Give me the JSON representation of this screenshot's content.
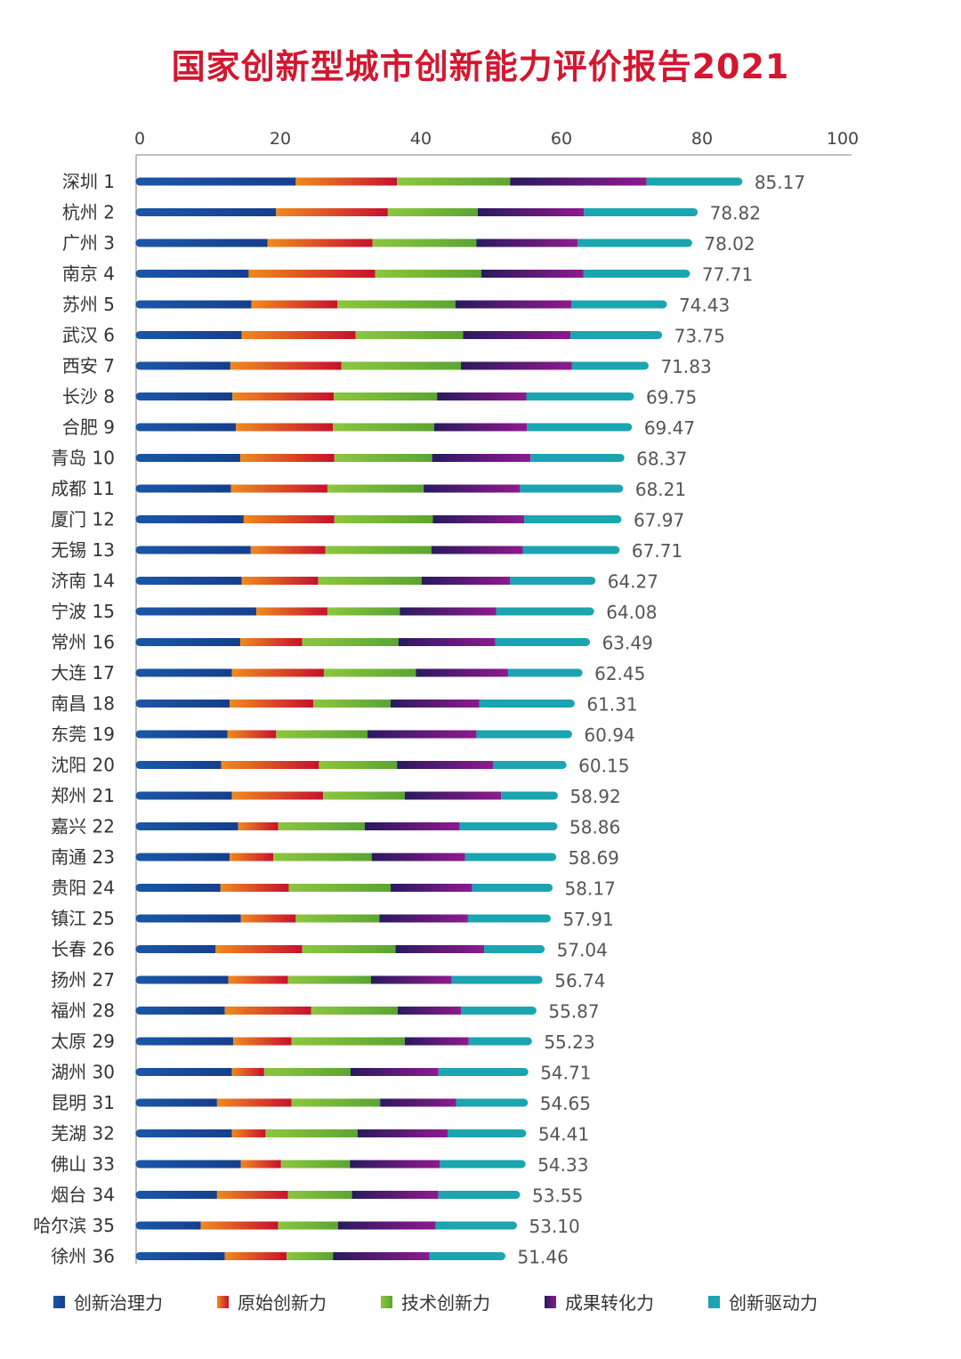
{
  "chart_data": {
    "type": "bar",
    "orientation": "horizontal",
    "stacked": true,
    "title": "国家创新型城市创新能力评价报告2021",
    "xlim": [
      0,
      100
    ],
    "xticks": [
      0,
      20,
      40,
      60,
      80,
      100
    ],
    "legend_position": "bottom",
    "categories": [
      "深圳 1",
      "杭州 2",
      "广州 3",
      "南京 4",
      "苏州 5",
      "武汉 6",
      "西安 7",
      "长沙 8",
      "合肥 9",
      "青岛 10",
      "成都 11",
      "厦门 12",
      "无锡 13",
      "济南 14",
      "宁波 15",
      "常州 16",
      "大连 17",
      "南昌 18",
      "东莞 19",
      "沈阳 20",
      "郑州 21",
      "嘉兴 22",
      "南通 23",
      "贵阳 24",
      "镇江 25",
      "长春 26",
      "扬州 27",
      "福州 28",
      "太原 29",
      "湖州 30",
      "昆明 31",
      "芜湖 32",
      "佛山 33",
      "烟台 34",
      "哈尔滨 35",
      "徐州 36"
    ],
    "totals": [
      "85.17",
      "78.82",
      "78.02",
      "77.71",
      "74.43",
      "73.75",
      "71.83",
      "69.75",
      "69.47",
      "68.37",
      "68.21",
      "67.97",
      "67.71",
      "64.27",
      "64.08",
      "63.49",
      "62.45",
      "61.31",
      "60.94",
      "60.15",
      "58.92",
      "58.86",
      "58.69",
      "58.17",
      "57.91",
      "57.04",
      "56.74",
      "55.87",
      "55.23",
      "54.71",
      "54.65",
      "54.41",
      "54.33",
      "53.55",
      "53.10",
      "51.46"
    ],
    "series": [
      {
        "name": "创新治理力",
        "colors": [
          "#1a56a6",
          "#163f8c"
        ],
        "values": [
          22.2,
          19.4,
          18.2,
          15.5,
          15.9,
          14.5,
          12.9,
          13.2,
          13.7,
          14.3,
          13.0,
          14.8,
          15.8,
          14.5,
          16.6,
          14.3,
          13.1,
          12.8,
          12.5,
          11.6,
          13.1,
          14.0,
          12.8,
          11.5,
          14.4,
          10.8,
          12.6,
          12.1,
          13.3,
          13.1,
          11.0,
          13.1,
          14.4,
          11.0,
          8.7,
          12.1
        ]
      },
      {
        "name": "原始创新力",
        "colors": [
          "#ef8a1e",
          "#c8102e"
        ],
        "values": [
          14.4,
          15.9,
          14.9,
          18.0,
          12.2,
          16.2,
          15.8,
          14.4,
          13.8,
          13.4,
          13.7,
          12.9,
          10.6,
          10.9,
          10.1,
          8.8,
          13.1,
          11.9,
          6.9,
          13.9,
          13.0,
          5.7,
          6.2,
          9.7,
          7.8,
          12.3,
          8.5,
          12.3,
          8.3,
          4.6,
          10.6,
          4.8,
          5.7,
          10.1,
          11.0,
          8.8
        ]
      },
      {
        "name": "技术创新力",
        "colors": [
          "#8cc63f",
          "#5ba532"
        ],
        "values": [
          16.1,
          12.8,
          14.8,
          15.1,
          16.8,
          15.3,
          17.0,
          14.7,
          14.4,
          13.9,
          13.7,
          14.0,
          15.1,
          14.7,
          10.3,
          13.7,
          13.1,
          11.0,
          13.0,
          11.1,
          11.6,
          12.3,
          14.0,
          14.5,
          11.9,
          13.3,
          11.8,
          12.3,
          16.1,
          12.3,
          12.6,
          13.1,
          9.8,
          9.1,
          8.5,
          6.6
        ]
      },
      {
        "name": "成果转化力",
        "colors": [
          "#2a1a5e",
          "#8e1a8e"
        ],
        "values": [
          19.4,
          15.1,
          14.4,
          14.5,
          16.5,
          15.3,
          15.8,
          12.7,
          13.2,
          14.0,
          13.7,
          13.0,
          13.0,
          12.6,
          13.7,
          13.8,
          13.1,
          12.6,
          15.5,
          13.7,
          13.7,
          13.5,
          13.3,
          11.6,
          12.6,
          12.6,
          11.5,
          9.0,
          9.1,
          12.5,
          10.8,
          12.8,
          12.8,
          12.3,
          13.9,
          13.7
        ]
      },
      {
        "name": "创新驱动力",
        "colors": [
          "#1aa5b0",
          "#1aa5b0"
        ],
        "values": [
          13.07,
          15.62,
          15.72,
          14.61,
          13.03,
          12.45,
          10.33,
          14.75,
          14.37,
          12.77,
          14.11,
          13.27,
          13.21,
          11.57,
          13.38,
          12.89,
          10.02,
          13.01,
          13.04,
          9.85,
          7.52,
          13.36,
          12.39,
          10.87,
          11.21,
          8.04,
          12.34,
          10.17,
          8.43,
          12.21,
          9.65,
          10.61,
          11.63,
          11.05,
          11.0,
          10.26
        ]
      }
    ]
  }
}
